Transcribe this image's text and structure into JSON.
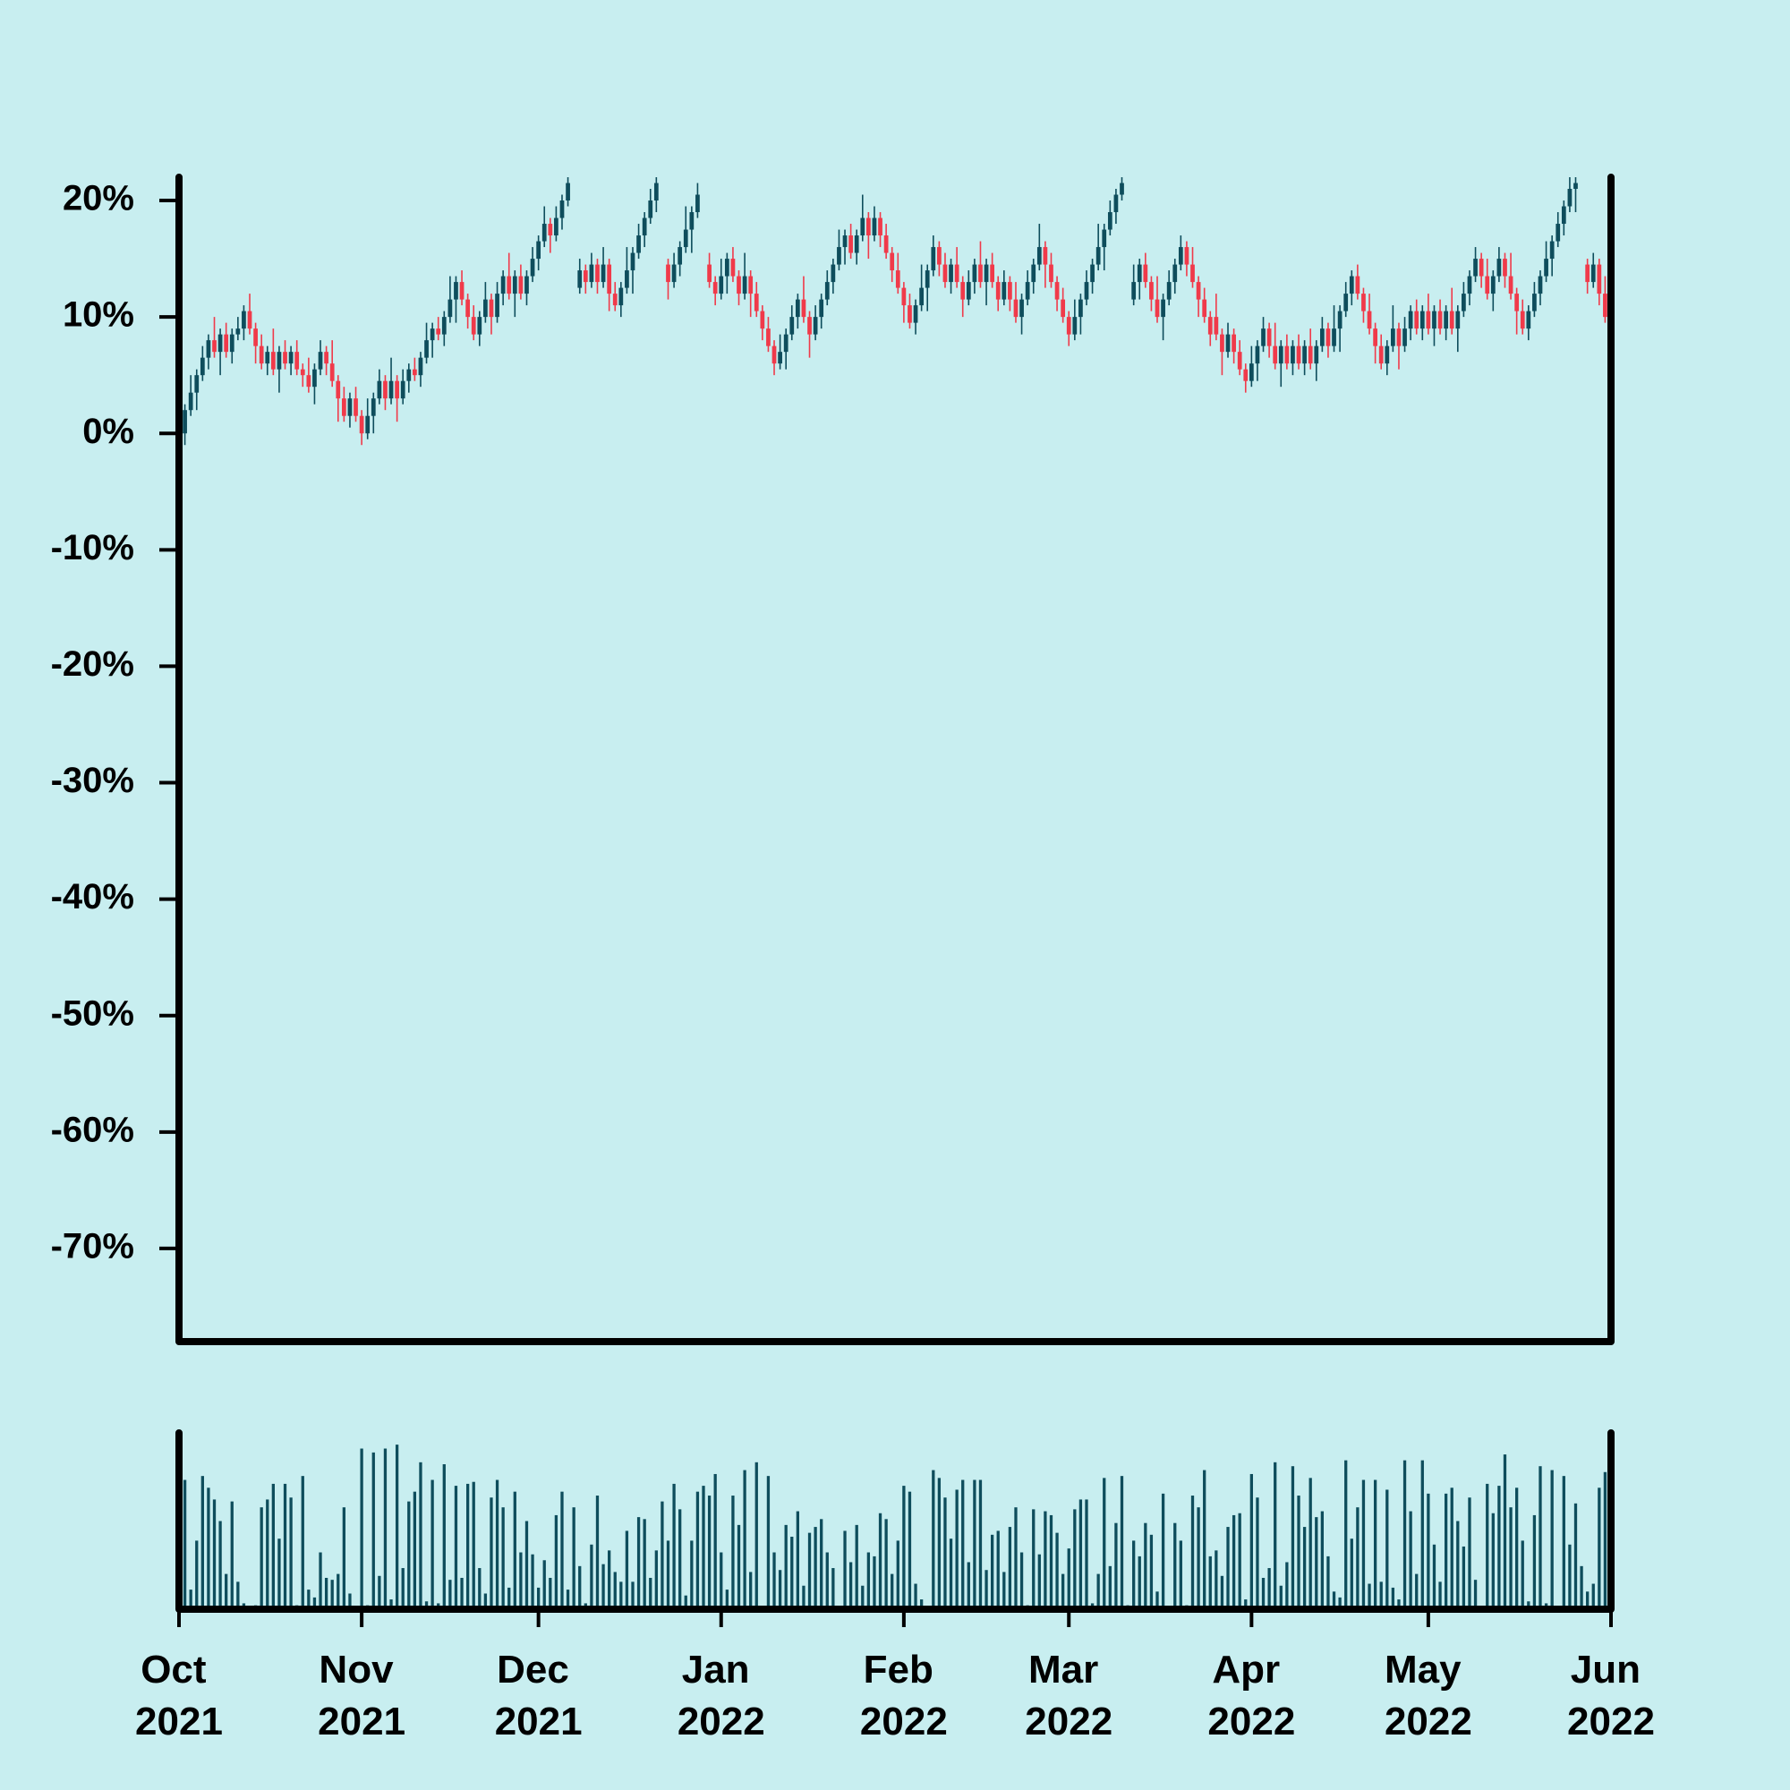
{
  "chart_data": {
    "type": "candlestick",
    "up_color": "#0e4d5c",
    "down_color": "#f03a4a",
    "volume_color": "#0e4d5c",
    "xlim": [
      0,
      243
    ],
    "ylim": [
      -78,
      22
    ],
    "volume_ylim": [
      0,
      90
    ],
    "xticks": [
      {
        "value": 0,
        "label": "Oct 2021"
      },
      {
        "value": 31,
        "label": "Nov 2021"
      },
      {
        "value": 61,
        "label": "Dec 2021"
      },
      {
        "value": 92,
        "label": "Jan 2022"
      },
      {
        "value": 123,
        "label": "Feb 2022"
      },
      {
        "value": 151,
        "label": "Mar 2022"
      },
      {
        "value": 182,
        "label": "Apr 2022"
      },
      {
        "value": 212,
        "label": "May 2022"
      },
      {
        "value": 243,
        "label": "Jun 2022"
      }
    ],
    "yticks": [
      {
        "value": -70,
        "label": "-70%"
      },
      {
        "value": -60,
        "label": "-60%"
      },
      {
        "value": -50,
        "label": "-50%"
      },
      {
        "value": -40,
        "label": "-40%"
      },
      {
        "value": -30,
        "label": "-30%"
      },
      {
        "value": -20,
        "label": "-20%"
      },
      {
        "value": -10,
        "label": "-10%"
      },
      {
        "value": 0,
        "label": "0%"
      },
      {
        "value": 10,
        "label": "10%"
      },
      {
        "value": 20,
        "label": "20%"
      }
    ],
    "x": [
      0,
      1,
      2,
      3,
      4,
      5,
      6,
      7,
      8,
      9,
      10,
      11,
      12,
      13,
      14,
      15,
      16,
      17,
      18,
      19,
      20,
      21,
      22,
      23,
      24,
      25,
      26,
      27,
      28,
      29,
      30,
      31,
      32,
      33,
      34,
      35,
      36,
      37,
      38,
      39,
      40,
      41,
      42,
      43,
      44,
      45,
      46,
      47,
      48,
      49,
      50,
      51,
      52,
      53,
      54,
      55,
      56,
      57,
      58,
      59,
      60,
      61,
      62,
      63,
      64,
      65,
      66,
      67,
      68,
      69,
      70,
      71,
      72,
      73,
      74,
      75,
      76,
      77,
      78,
      79,
      80,
      81,
      82,
      83,
      84,
      85,
      86,
      87,
      88,
      89,
      90,
      91,
      92,
      93,
      94,
      95,
      96,
      97,
      98,
      99,
      100,
      101,
      102,
      103,
      104,
      105,
      106,
      107,
      108,
      109,
      110,
      111,
      112,
      113,
      114,
      115,
      116,
      117,
      118,
      119,
      120,
      121,
      122,
      123,
      124,
      125,
      126,
      127,
      128,
      129,
      130,
      131,
      132,
      133,
      134,
      135,
      136,
      137,
      138,
      139,
      140,
      141,
      142,
      143,
      144,
      145,
      146,
      147,
      148,
      149,
      150,
      151,
      152,
      153,
      154,
      155,
      156,
      157,
      158,
      159,
      160,
      161,
      162,
      163,
      164,
      165,
      166,
      167,
      168,
      169,
      170,
      171,
      172,
      173,
      174,
      175,
      176,
      177,
      178,
      179,
      180,
      181,
      182,
      183,
      184,
      185,
      186,
      187,
      188,
      189,
      190,
      191,
      192,
      193,
      194,
      195,
      196,
      197,
      198,
      199,
      200,
      201,
      202,
      203,
      204,
      205,
      206,
      207,
      208,
      209,
      210,
      211,
      212,
      213,
      214,
      215,
      216,
      217,
      218,
      219,
      220,
      221,
      222,
      223,
      224,
      225,
      226,
      227,
      228,
      229,
      230,
      231,
      232,
      233,
      234,
      235,
      236,
      237,
      238,
      239,
      240,
      241,
      242
    ],
    "open": [
      -1,
      0,
      2,
      3.5,
      5,
      6.5,
      8,
      7,
      8.5,
      7,
      8.5,
      9,
      10.5,
      9,
      7.5,
      6,
      7,
      5.5,
      7,
      6,
      7,
      5.5,
      5,
      4,
      5.5,
      7,
      6,
      4.5,
      3,
      1.5,
      3,
      1.5,
      0,
      1.5,
      3,
      4.5,
      3,
      4.5,
      3,
      4.5,
      5.5,
      5,
      6.5,
      8,
      9,
      8.5,
      10,
      11.5,
      13,
      11.5,
      10,
      8.5,
      10,
      11.5,
      10,
      12,
      13.5,
      12,
      13.5,
      12,
      13.5,
      15,
      16.5,
      18,
      17,
      18.5,
      20,
      null,
      12.5,
      14,
      13,
      14.5,
      13,
      14.5,
      12,
      11,
      12.5,
      14,
      15.5,
      17,
      18.5,
      20,
      null,
      14.5,
      13,
      14.5,
      16,
      17.5,
      19,
      null,
      14.5,
      13,
      12,
      13.5,
      15,
      13.5,
      12,
      13.5,
      12,
      10.5,
      9,
      7.5,
      6,
      7,
      8.5,
      10,
      11.5,
      10,
      8.5,
      10,
      11.5,
      13,
      14.5,
      16,
      17,
      15.5,
      17,
      18.5,
      17,
      18.5,
      17,
      15.5,
      14,
      12.5,
      11,
      9.5,
      11,
      12.5,
      14,
      16,
      14.5,
      13,
      14.5,
      13,
      11.5,
      13,
      14.5,
      13,
      14.5,
      13,
      11.5,
      13,
      11.5,
      10,
      11.5,
      13,
      14.5,
      16,
      14.5,
      13,
      11.5,
      10,
      8.5,
      10,
      11.5,
      13,
      14.5,
      16,
      17.5,
      19,
      20.5,
      null,
      11.5,
      13,
      14.5,
      13,
      11.5,
      10,
      11.5,
      13,
      14.5,
      16,
      14.5,
      13,
      11.5,
      10,
      10,
      8.5,
      7,
      8.5,
      7,
      5.5,
      4.5,
      6,
      7.5,
      9,
      7.5,
      6,
      7.5,
      6,
      7.5,
      6,
      7.5,
      6,
      7.5,
      9,
      7.5,
      9,
      10.5,
      12,
      13.5,
      12,
      10.5,
      9,
      7.5,
      6,
      7.5,
      9,
      7.5,
      9,
      10.5,
      9,
      10.5,
      9,
      10.5,
      9,
      10.5,
      9,
      10.5,
      12,
      13.5,
      15,
      13.5,
      12,
      13.5,
      15,
      13.5,
      12,
      10.5,
      9,
      10.5,
      12,
      13.5,
      15,
      16.5,
      18,
      19.5,
      21,
      null,
      14.5,
      13,
      14.5,
      12
    ],
    "high": [
      1,
      2.5,
      5,
      5.5,
      7.5,
      8.5,
      10,
      9,
      9.5,
      9,
      10,
      11,
      12,
      9.5,
      8.5,
      7.5,
      9,
      7.5,
      8,
      7.5,
      8,
      6,
      6.5,
      6,
      8,
      7.5,
      8,
      5,
      4,
      3.5,
      4,
      2,
      3,
      3.5,
      5.5,
      5,
      6.5,
      5,
      5.5,
      6,
      6.5,
      7,
      9.5,
      9.5,
      10,
      10.5,
      13.5,
      13.5,
      14,
      12,
      11,
      10.5,
      13,
      12,
      13,
      14,
      15.5,
      14,
      14.5,
      14,
      16,
      17,
      19.5,
      18.5,
      19.5,
      20.5,
      23.5,
      null,
      15,
      14.5,
      15.5,
      15,
      16,
      15,
      13,
      13,
      16,
      16,
      18,
      19,
      21,
      22,
      null,
      15,
      15.5,
      16.5,
      19.5,
      19.5,
      21.5,
      null,
      15.5,
      13.5,
      15,
      15.5,
      16,
      14,
      15.5,
      14,
      13,
      11,
      10,
      8,
      8.5,
      9,
      11,
      12,
      13.5,
      10.5,
      11,
      12,
      14,
      15,
      17.5,
      17.5,
      18,
      17.5,
      20.5,
      19,
      19.5,
      19,
      18,
      16,
      15.5,
      13,
      12,
      11.5,
      14.5,
      14.5,
      17,
      16.5,
      15.5,
      15,
      16,
      13.5,
      14,
      15,
      16.5,
      15,
      15.5,
      13.5,
      14,
      13.5,
      13,
      12,
      14,
      15,
      18,
      16.5,
      15.5,
      13.5,
      12.5,
      10.5,
      11.5,
      12,
      14,
      15,
      18,
      18,
      20,
      21,
      22.5,
      null,
      14.5,
      15,
      15.5,
      13.5,
      13.5,
      12,
      14,
      15,
      17,
      16.5,
      16,
      13.5,
      12.5,
      10.5,
      12,
      9,
      9.5,
      9,
      8,
      6,
      7.5,
      8,
      10,
      9.5,
      9.5,
      8,
      8.5,
      8,
      8.5,
      8,
      9,
      8,
      10,
      9.5,
      11,
      11,
      13,
      14,
      14.5,
      12.5,
      12,
      9.5,
      8.5,
      8,
      11,
      9.5,
      10,
      11,
      11.5,
      11,
      12,
      11,
      11.5,
      11,
      12.5,
      11,
      13,
      14,
      16,
      15.5,
      15,
      14,
      16,
      15.5,
      15.5,
      12.5,
      11.5,
      11,
      13,
      14,
      16.5,
      17,
      19,
      20,
      23,
      22,
      null,
      15,
      15.5,
      15,
      13.5
    ],
    "low": [
      -1.5,
      -1,
      1.5,
      2,
      4.5,
      5.5,
      6.5,
      5,
      6.5,
      6,
      8,
      8,
      8.5,
      6,
      5.5,
      5,
      5,
      3.5,
      5.5,
      5,
      5,
      4,
      3.5,
      2.5,
      5,
      5,
      4,
      1,
      1,
      0.5,
      1,
      -1,
      -0.5,
      0,
      2.5,
      2,
      2.5,
      1,
      2.5,
      3.5,
      4.5,
      4,
      6,
      6.5,
      8,
      7.5,
      9.5,
      9.5,
      11,
      9,
      8,
      7.5,
      9.5,
      8.5,
      9.5,
      11,
      11.5,
      10,
      11.5,
      11,
      13,
      14,
      16,
      15.5,
      16.5,
      17.5,
      19.5,
      null,
      12,
      12,
      12.5,
      12,
      12.5,
      10.5,
      10.5,
      10,
      12,
      12,
      15,
      16,
      18,
      19,
      null,
      11.5,
      12.5,
      13.5,
      15.5,
      15.5,
      18.5,
      null,
      12.5,
      11,
      11.5,
      12,
      13,
      11,
      11.5,
      10,
      10,
      8,
      7,
      5,
      5.5,
      5.5,
      8,
      9,
      9.5,
      6.5,
      8,
      9,
      11,
      12,
      14,
      14.5,
      15,
      14.5,
      16.5,
      15,
      16.5,
      16,
      15,
      13,
      12,
      9.5,
      9,
      8.5,
      10.5,
      10.5,
      13.5,
      13.5,
      12.5,
      12,
      12.5,
      10,
      11,
      12,
      12.5,
      11,
      12.5,
      10.5,
      11,
      10.5,
      9.5,
      8.5,
      11,
      12,
      14,
      12.5,
      12.5,
      10.5,
      9.5,
      7.5,
      8,
      8.5,
      11,
      12,
      14,
      14,
      17,
      18,
      20,
      null,
      11,
      11.5,
      12.5,
      10.5,
      9.5,
      8,
      11,
      12,
      14,
      13.5,
      12.5,
      10,
      9.5,
      7.5,
      8,
      5,
      6.5,
      6,
      5,
      3.5,
      4,
      4.5,
      7,
      6.5,
      5.5,
      4,
      5.5,
      5,
      5.5,
      5,
      5.5,
      4.5,
      7,
      6.5,
      7,
      7,
      10,
      11,
      11.5,
      9.5,
      8.5,
      6,
      5.5,
      5,
      7,
      5.5,
      7,
      8,
      8.5,
      8,
      8.5,
      7.5,
      8.5,
      8,
      8.5,
      7,
      10,
      11,
      13,
      12.5,
      11.5,
      10.5,
      13,
      12.5,
      11.5,
      8.5,
      8.5,
      8,
      10,
      11,
      13,
      13.5,
      16,
      17,
      19,
      19,
      null,
      12,
      12.5,
      11,
      9.5
    ],
    "close": [
      0,
      2,
      3.5,
      5,
      6.5,
      8,
      7,
      8.5,
      7,
      8.5,
      9,
      10.5,
      9,
      7.5,
      6,
      7,
      5.5,
      7,
      6,
      7,
      5.5,
      5,
      4,
      5.5,
      7,
      6,
      4.5,
      3,
      1.5,
      3,
      1.5,
      0,
      1.5,
      3,
      4.5,
      3,
      4.5,
      3,
      4.5,
      5.5,
      5,
      6.5,
      8,
      9,
      8.5,
      10,
      11.5,
      13,
      11.5,
      10,
      8.5,
      10,
      11.5,
      10,
      12,
      13.5,
      12,
      13.5,
      12,
      13.5,
      15,
      16.5,
      18,
      17,
      18.5,
      20,
      21.5,
      null,
      14,
      13,
      14.5,
      13,
      14.5,
      12,
      11,
      12.5,
      14,
      15.5,
      17,
      18.5,
      20,
      21.5,
      null,
      13,
      14.5,
      16,
      17.5,
      19,
      20.5,
      null,
      13,
      12,
      13.5,
      15,
      13.5,
      12,
      13.5,
      12,
      10.5,
      9,
      7.5,
      6,
      7,
      8.5,
      10,
      11.5,
      10,
      8.5,
      10,
      11.5,
      13,
      14.5,
      16,
      17,
      15.5,
      17,
      18.5,
      17,
      18.5,
      17,
      15.5,
      14,
      12.5,
      11,
      9.5,
      11,
      12.5,
      14,
      16,
      14.5,
      13,
      14.5,
      13,
      11.5,
      13,
      14.5,
      13,
      14.5,
      13,
      11.5,
      13,
      11.5,
      10,
      11.5,
      13,
      14.5,
      16,
      14.5,
      13,
      11.5,
      10,
      8.5,
      10,
      11.5,
      13,
      14.5,
      16,
      17.5,
      19,
      20.5,
      21.5,
      null,
      13,
      14.5,
      13,
      11.5,
      10,
      11.5,
      13,
      14.5,
      16,
      14.5,
      13,
      11.5,
      10,
      8.5,
      8.5,
      7,
      8.5,
      7,
      5.5,
      4.5,
      6,
      7.5,
      9,
      7.5,
      6,
      7.5,
      6,
      7.5,
      6,
      7.5,
      6,
      7.5,
      9,
      7.5,
      9,
      10.5,
      12,
      13.5,
      12,
      10.5,
      9,
      7.5,
      6,
      7.5,
      9,
      7.5,
      9,
      10.5,
      9,
      10.5,
      9,
      10.5,
      9,
      10.5,
      9,
      10.5,
      12,
      13.5,
      15,
      13.5,
      12,
      13.5,
      15,
      13.5,
      12,
      10.5,
      9,
      10.5,
      12,
      13.5,
      15,
      16.5,
      18,
      19.5,
      21,
      21.5,
      null,
      13,
      14.5,
      12,
      10
    ],
    "volume": [
      62,
      66,
      10,
      35,
      68,
      62,
      56,
      45,
      18,
      55,
      14,
      3,
      0,
      2,
      52,
      56,
      64,
      36,
      64,
      57,
      2,
      68,
      10,
      6,
      29,
      16,
      15,
      18,
      52,
      8,
      1,
      82,
      2,
      80,
      17,
      82,
      5,
      84,
      21,
      55,
      60,
      75,
      4,
      66,
      3,
      74,
      15,
      63,
      16,
      64,
      65,
      21,
      8,
      57,
      66,
      52,
      11,
      60,
      29,
      45,
      28,
      11,
      25,
      16,
      48,
      60,
      10,
      52,
      22,
      3,
      33,
      58,
      23,
      30,
      19,
      14,
      40,
      14,
      47,
      46,
      16,
      30,
      55,
      35,
      64,
      51,
      7,
      35,
      60,
      63,
      58,
      69,
      29,
      10,
      58,
      43,
      71,
      19,
      75,
      1,
      68,
      29,
      20,
      43,
      37,
      50,
      12,
      39,
      42,
      46,
      29,
      21,
      1,
      40,
      24,
      43,
      12,
      29,
      27,
      49,
      46,
      18,
      35,
      63,
      60,
      13,
      5,
      1,
      71,
      67,
      57,
      36,
      61,
      66,
      24,
      66,
      66,
      20,
      38,
      40,
      19,
      42,
      52,
      29,
      2,
      51,
      28,
      50,
      48,
      39,
      18,
      31,
      51,
      56,
      56,
      3,
      18,
      67,
      22,
      44,
      68,
      2,
      35,
      27,
      44,
      38,
      9,
      59,
      0,
      44,
      35,
      2,
      58,
      52,
      71,
      27,
      30,
      17,
      42,
      48,
      49,
      5,
      69,
      57,
      16,
      21,
      75,
      12,
      24,
      73,
      58,
      42,
      67,
      47,
      50,
      27,
      9,
      6,
      76,
      36,
      52,
      66,
      13,
      66,
      14,
      61,
      11,
      5,
      76,
      50,
      18,
      76,
      59,
      33,
      14,
      59,
      62,
      45,
      32,
      57,
      15,
      1,
      64,
      49,
      63,
      79,
      52,
      62,
      35,
      4,
      48,
      73,
      3,
      71,
      1,
      68,
      33,
      54,
      22,
      9,
      13,
      62,
      70
    ]
  }
}
